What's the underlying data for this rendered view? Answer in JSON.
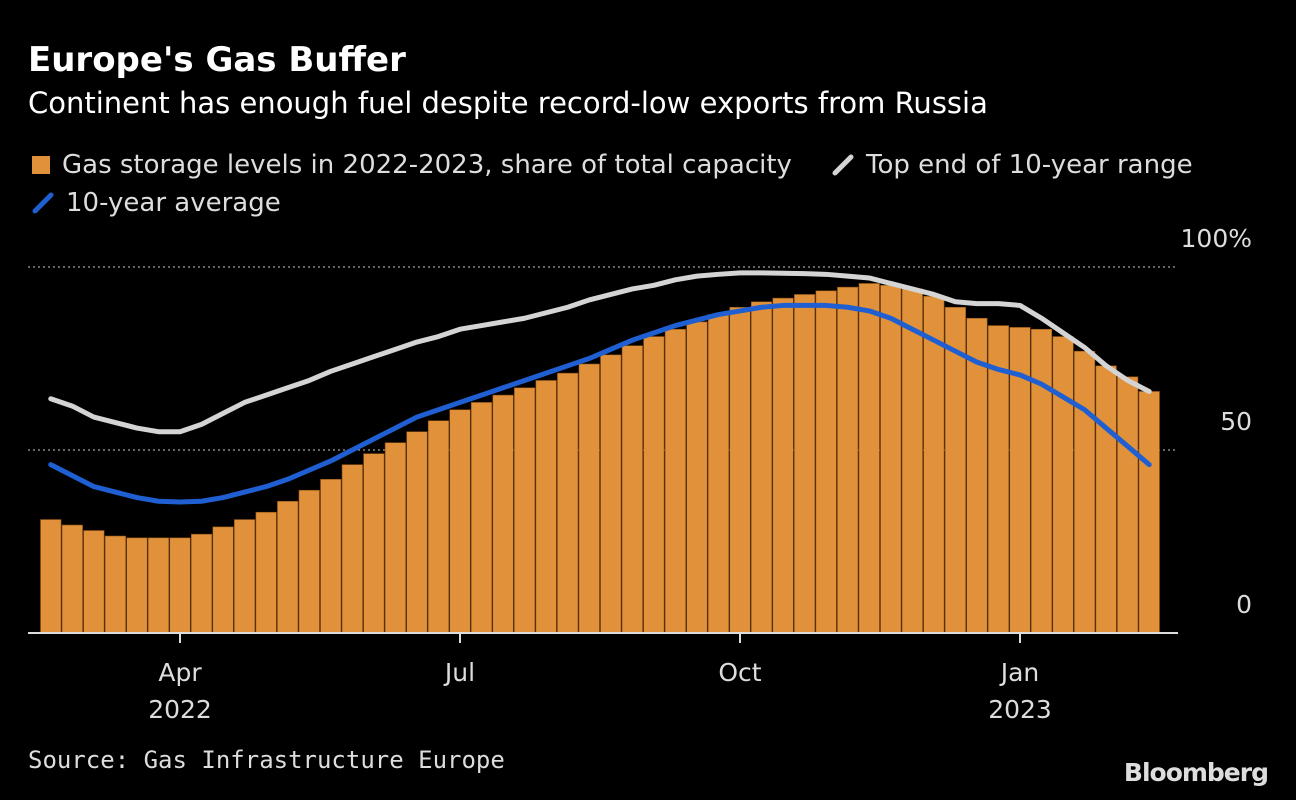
{
  "chart_data": {
    "type": "bar",
    "title": "Europe's Gas Buffer",
    "subtitle": "Continent has enough fuel despite record-low exports from Russia",
    "source": "Source: Gas Infrastructure Europe",
    "credit": "Bloomberg",
    "categories": [
      null,
      null,
      null,
      null,
      null,
      null,
      "Apr 2022",
      null,
      null,
      null,
      null,
      null,
      null,
      null,
      null,
      null,
      null,
      null,
      null,
      "Jul",
      null,
      null,
      null,
      null,
      null,
      null,
      null,
      null,
      null,
      null,
      null,
      null,
      "Oct",
      null,
      null,
      null,
      null,
      null,
      null,
      null,
      null,
      null,
      null,
      null,
      null,
      "Jan 2023",
      null,
      null,
      null,
      null,
      null,
      null
    ],
    "ylim": [
      0,
      100
    ],
    "yticks": [
      0,
      50,
      {
        "value": 100,
        "label": "100%"
      }
    ],
    "grid": true,
    "series": [
      {
        "name": "Gas storage levels in 2022-2023, share of total capacity",
        "type": "bar",
        "color": "#e0913a",
        "values": [
          31,
          29.5,
          28,
          26.5,
          26,
          26,
          26,
          27,
          29,
          31,
          33,
          36,
          39,
          42,
          46,
          49,
          52,
          55,
          58,
          61,
          63,
          65,
          67,
          69,
          71,
          73.5,
          76,
          78.5,
          81,
          83,
          85,
          87,
          89,
          90.5,
          91.5,
          92.5,
          93.5,
          94.5,
          95.5,
          95,
          94,
          92,
          89,
          86,
          84,
          83.5,
          83,
          81,
          77,
          73,
          70,
          66
        ]
      },
      {
        "name": "Top end of 10-year range",
        "type": "line",
        "color": "#d4d4d4",
        "values": [
          64,
          62,
          59,
          57.5,
          56,
          55,
          55,
          57,
          60,
          63,
          65,
          67,
          69,
          71.5,
          73.5,
          75.5,
          77.5,
          79.5,
          81,
          83,
          84,
          85,
          86,
          87.5,
          89,
          91,
          92.5,
          94,
          95,
          96.5,
          97.5,
          98,
          98.4,
          98.4,
          98.3,
          98.2,
          98,
          97.5,
          97,
          95.5,
          94,
          92.5,
          90.5,
          90,
          90,
          89.5,
          86,
          82,
          78,
          73,
          69,
          66
        ]
      },
      {
        "name": "10-year average",
        "type": "line",
        "color": "#1f5fd1",
        "values": [
          46,
          43,
          40,
          38.5,
          37,
          36,
          35.8,
          36,
          37,
          38.5,
          40,
          42,
          44.5,
          47,
          50,
          53,
          56,
          59,
          61,
          63,
          65,
          67,
          69,
          71,
          73,
          75,
          77.5,
          80,
          82,
          84,
          85.5,
          87,
          88,
          89,
          89.5,
          89.5,
          89.5,
          89,
          88,
          86,
          83,
          80,
          77,
          74,
          72,
          70.5,
          68,
          64.5,
          61,
          56,
          51,
          46
        ]
      }
    ]
  }
}
